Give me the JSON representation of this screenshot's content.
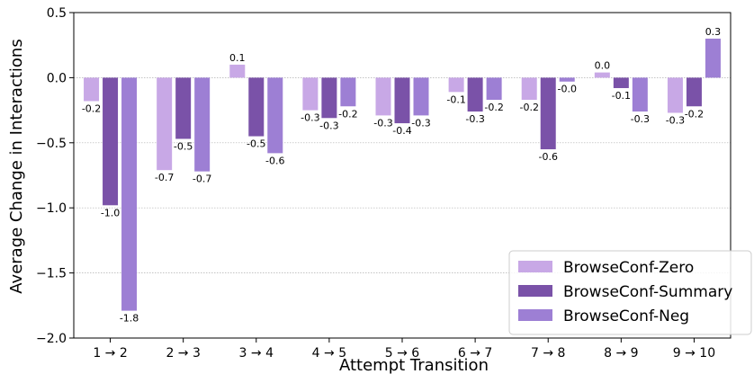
{
  "chart_data": {
    "type": "bar",
    "xlabel": "Attempt Transition",
    "ylabel": "Average Change in Interactions",
    "ylim": [
      -2.0,
      0.5
    ],
    "yticks": [
      0.5,
      0.0,
      -0.5,
      -1.0,
      -1.5,
      -2.0
    ],
    "ytick_labels": [
      "0.5",
      "0.0",
      "−0.5",
      "−1.0",
      "−1.5",
      "−2.0"
    ],
    "grid": "horizontal-dotted",
    "legend_position": "bottom-right",
    "categories": [
      "1 → 2",
      "2 → 3",
      "3 → 4",
      "4 → 5",
      "5 → 6",
      "6 → 7",
      "7 → 8",
      "8 → 9",
      "9 → 10"
    ],
    "series": [
      {
        "name": "BrowseConf-Zero",
        "color": "#c8a8e6",
        "values": [
          -0.18,
          -0.71,
          0.1,
          -0.25,
          -0.29,
          -0.11,
          -0.17,
          0.04,
          -0.27
        ],
        "labels": [
          "-0.2",
          "-0.7",
          "0.1",
          "-0.3",
          "-0.3",
          "-0.1",
          "-0.2",
          "0.0",
          "-0.3"
        ]
      },
      {
        "name": "BrowseConf-Summary",
        "color": "#7a52a8",
        "values": [
          -0.98,
          -0.47,
          -0.45,
          -0.31,
          -0.35,
          -0.26,
          -0.55,
          -0.08,
          -0.22
        ],
        "labels": [
          "-1.0",
          "-0.5",
          "-0.5",
          "-0.3",
          "-0.4",
          "-0.3",
          "-0.6",
          "-0.1",
          "-0.2"
        ]
      },
      {
        "name": "BrowseConf-Neg",
        "color": "#9d7fd4",
        "values": [
          -1.79,
          -0.72,
          -0.58,
          -0.22,
          -0.29,
          -0.17,
          -0.03,
          -0.26,
          0.3
        ],
        "labels": [
          "-1.8",
          "-0.7",
          "-0.6",
          "-0.2",
          "-0.3",
          "-0.2",
          "-0.0",
          "-0.3",
          "0.3"
        ]
      }
    ]
  }
}
